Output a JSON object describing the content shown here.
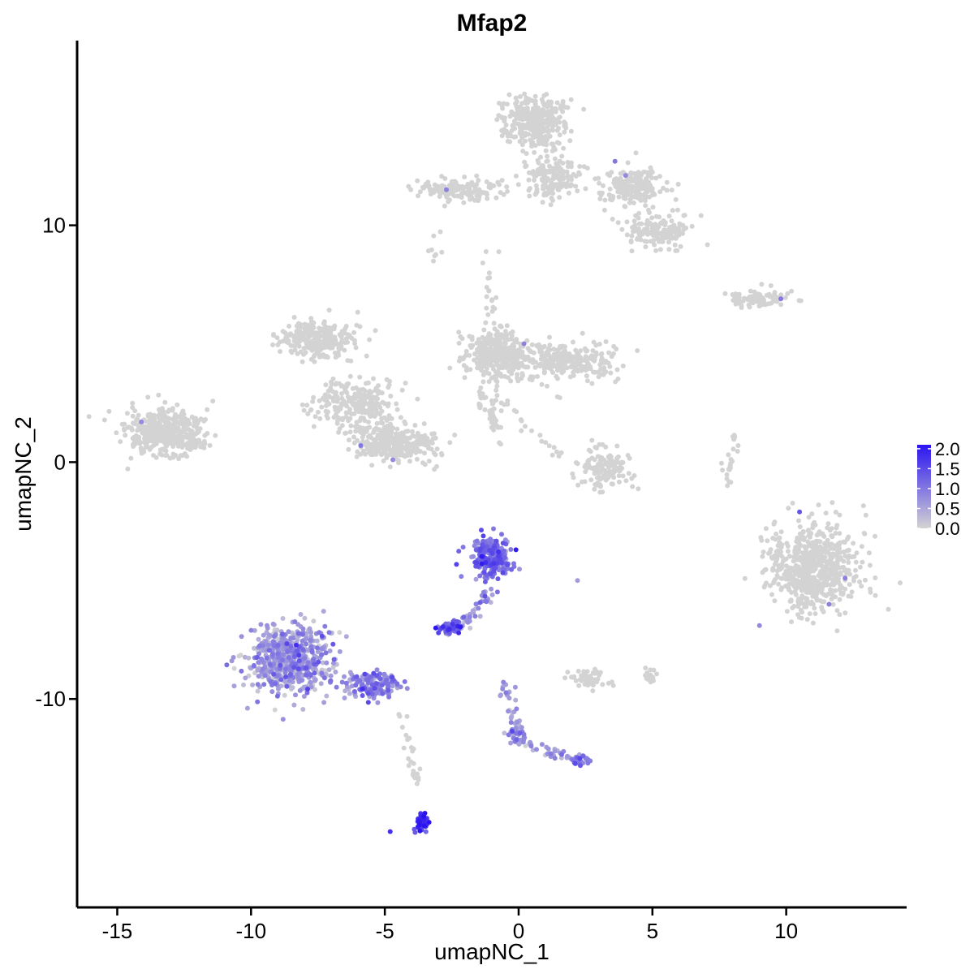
{
  "chart_data": {
    "type": "scatter",
    "title": "Mfap2",
    "xlabel": "umapNC_1",
    "ylabel": "umapNC_2",
    "xlim": [
      -16.5,
      14.5
    ],
    "ylim": [
      -18.8,
      17.8
    ],
    "x_ticks": [
      {
        "value": -15,
        "label": "-15"
      },
      {
        "value": -10,
        "label": "-10"
      },
      {
        "value": -5,
        "label": "-5"
      },
      {
        "value": 0,
        "label": "0"
      },
      {
        "value": 5,
        "label": "5"
      },
      {
        "value": 10,
        "label": "10"
      }
    ],
    "y_ticks": [
      {
        "value": -10,
        "label": "-10"
      },
      {
        "value": 0,
        "label": "0"
      },
      {
        "value": 10,
        "label": "10"
      }
    ],
    "grid": false,
    "legend": {
      "placement": "right",
      "title": "",
      "scale": "continuous",
      "low_color": "#D3D3D3",
      "high_color": "#2B14F0",
      "range": [
        0,
        2.1
      ],
      "breaks": [
        {
          "value": 2.0,
          "label": "2.0"
        },
        {
          "value": 1.5,
          "label": "1.5"
        },
        {
          "value": 1.0,
          "label": "1.0"
        },
        {
          "value": 0.5,
          "label": "0.5"
        },
        {
          "value": 0.0,
          "label": "0.0"
        }
      ]
    },
    "clusters": [
      {
        "center": [
          -13.2,
          1.2
        ],
        "spread": [
          1.3,
          0.9
        ],
        "n": 420,
        "expr": 0.0
      },
      {
        "center": [
          -7.6,
          5.2
        ],
        "spread": [
          1.3,
          0.7
        ],
        "n": 260,
        "expr": 0.0
      },
      {
        "center": [
          -6.0,
          2.5
        ],
        "spread": [
          1.3,
          0.9
        ],
        "n": 240,
        "expr": 0.0
      },
      {
        "center": [
          -4.6,
          0.8
        ],
        "spread": [
          1.3,
          0.7
        ],
        "n": 300,
        "expr": 0.0
      },
      {
        "center": [
          -0.8,
          4.6
        ],
        "spread": [
          1.1,
          1.0
        ],
        "n": 300,
        "expr": 0.0
      },
      {
        "center": [
          1.8,
          4.3
        ],
        "spread": [
          1.7,
          0.7
        ],
        "n": 280,
        "expr": 0.0
      },
      {
        "center": [
          0.6,
          14.4
        ],
        "spread": [
          1.0,
          0.9
        ],
        "n": 360,
        "expr": 0.0
      },
      {
        "center": [
          1.3,
          12.0
        ],
        "spread": [
          1.0,
          0.8
        ],
        "n": 170,
        "expr": 0.0
      },
      {
        "center": [
          -2.2,
          11.5
        ],
        "spread": [
          1.6,
          0.4
        ],
        "n": 140,
        "expr": 0.0
      },
      {
        "center": [
          4.2,
          11.6
        ],
        "spread": [
          1.1,
          0.7
        ],
        "n": 190,
        "expr": 0.0
      },
      {
        "center": [
          5.2,
          9.8
        ],
        "spread": [
          1.0,
          0.6
        ],
        "n": 160,
        "expr": 0.0
      },
      {
        "center": [
          9.0,
          6.9
        ],
        "spread": [
          1.0,
          0.35
        ],
        "n": 90,
        "expr": 0.0
      },
      {
        "center": [
          3.2,
          -0.3
        ],
        "spread": [
          0.9,
          0.8
        ],
        "n": 130,
        "expr": 0.0
      },
      {
        "center": [
          11.0,
          -4.5
        ],
        "spread": [
          1.5,
          1.7
        ],
        "n": 620,
        "expr": 0.0
      },
      {
        "center": [
          2.6,
          -9.2
        ],
        "spread": [
          0.7,
          0.4
        ],
        "n": 50,
        "expr": 0.0
      },
      {
        "center": [
          5.0,
          -9.0
        ],
        "spread": [
          0.3,
          0.3
        ],
        "n": 14,
        "expr": 0.0
      },
      {
        "center": [
          -8.5,
          -8.3
        ],
        "spread": [
          1.4,
          1.3
        ],
        "n": 640,
        "expr": 0.55
      },
      {
        "center": [
          -5.5,
          -9.4
        ],
        "spread": [
          1.0,
          0.5
        ],
        "n": 150,
        "expr": 0.75
      },
      {
        "center": [
          -1.0,
          -4.0
        ],
        "spread": [
          0.65,
          0.8
        ],
        "n": 230,
        "expr": 1.05
      },
      {
        "center": [
          -2.5,
          -7.0
        ],
        "spread": [
          0.4,
          0.25
        ],
        "n": 70,
        "expr": 1.2
      },
      {
        "center": [
          -3.6,
          -15.2
        ],
        "spread": [
          0.2,
          0.35
        ],
        "n": 60,
        "expr": 1.6
      },
      {
        "center": [
          2.3,
          -12.6
        ],
        "spread": [
          0.3,
          0.2
        ],
        "n": 30,
        "expr": 0.85
      },
      {
        "center": [
          -0.1,
          -11.5
        ],
        "spread": [
          0.4,
          0.25
        ],
        "n": 30,
        "expr": 0.7
      }
    ],
    "trails": [
      {
        "from": [
          -0.8,
          1.5
        ],
        "to": [
          -1.2,
          9.3
        ],
        "n": 50,
        "expr": 0.0
      },
      {
        "from": [
          -1.5,
          3.0
        ],
        "to": [
          -0.7,
          1.0
        ],
        "n": 40,
        "expr": 0.0
      },
      {
        "from": [
          -0.8,
          2.6
        ],
        "to": [
          1.7,
          0.2
        ],
        "n": 20,
        "expr": 0.0
      },
      {
        "from": [
          -6.6,
          1.3
        ],
        "to": [
          -4.6,
          1.4
        ],
        "n": 30,
        "expr": 0.0
      },
      {
        "from": [
          -4.4,
          -10.4
        ],
        "to": [
          -3.7,
          -14.0
        ],
        "n": 25,
        "expr": 0.0
      },
      {
        "from": [
          -0.9,
          -5.4
        ],
        "to": [
          -2.0,
          -6.9
        ],
        "n": 35,
        "expr": 0.7
      },
      {
        "from": [
          -0.6,
          -9.2
        ],
        "to": [
          0.1,
          -11.8
        ],
        "n": 40,
        "expr": 0.6
      },
      {
        "from": [
          0.1,
          -11.8
        ],
        "to": [
          2.4,
          -12.6
        ],
        "n": 35,
        "expr": 0.55
      },
      {
        "from": [
          -3.0,
          10.0
        ],
        "to": [
          -3.1,
          8.5
        ],
        "n": 8,
        "expr": 0.0
      },
      {
        "from": [
          8.0,
          1.2
        ],
        "to": [
          7.8,
          -1.0
        ],
        "n": 25,
        "expr": 0.0
      }
    ],
    "singletons": [
      {
        "x": -14.1,
        "y": 1.7,
        "expr": 0.8
      },
      {
        "x": 0.2,
        "y": 5.0,
        "expr": 0.9
      },
      {
        "x": -5.9,
        "y": 0.7,
        "expr": 1.0
      },
      {
        "x": -4.7,
        "y": 0.1,
        "expr": 0.8
      },
      {
        "x": -2.7,
        "y": 11.5,
        "expr": 0.9
      },
      {
        "x": 3.6,
        "y": 12.7,
        "expr": 1.0
      },
      {
        "x": 4.0,
        "y": 12.1,
        "expr": 0.8
      },
      {
        "x": 9.8,
        "y": 6.9,
        "expr": 1.0
      },
      {
        "x": 10.5,
        "y": -2.1,
        "expr": 1.4
      },
      {
        "x": 12.2,
        "y": -4.9,
        "expr": 0.9
      },
      {
        "x": 11.6,
        "y": -6.0,
        "expr": 0.9
      },
      {
        "x": -4.8,
        "y": -15.6,
        "expr": 1.8
      },
      {
        "x": -3.1,
        "y": -7.0,
        "expr": 2.1
      },
      {
        "x": -0.1,
        "y": -3.7,
        "expr": 2.0
      },
      {
        "x": 2.2,
        "y": -5.0,
        "expr": 0.6
      },
      {
        "x": 9.0,
        "y": -6.9,
        "expr": 0.8
      }
    ]
  }
}
